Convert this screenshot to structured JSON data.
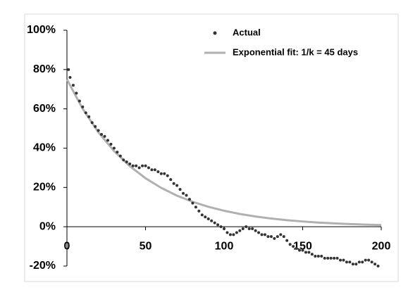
{
  "chart_data": {
    "type": "scatter",
    "xlim": [
      0,
      200
    ],
    "xticks": [
      0,
      50,
      100,
      150,
      200
    ],
    "ylim": [
      -20,
      100
    ],
    "yticks": [
      {
        "value": -20,
        "label": "-20%"
      },
      {
        "value": 0,
        "label": "0%"
      },
      {
        "value": 20,
        "label": "20%"
      },
      {
        "value": 40,
        "label": "40%"
      },
      {
        "value": 60,
        "label": "60%"
      },
      {
        "value": 80,
        "label": "80%"
      },
      {
        "value": 100,
        "label": "100%"
      }
    ],
    "legend": "top-right",
    "series": [
      {
        "name": "Actual",
        "color": "#333333",
        "kind": "points",
        "x": [
          1,
          2,
          4,
          6,
          8,
          10,
          12,
          14,
          16,
          18,
          20,
          22,
          24,
          26,
          28,
          30,
          32,
          34,
          36,
          38,
          40,
          42,
          44,
          46,
          48,
          50,
          52,
          54,
          56,
          58,
          60,
          62,
          64,
          66,
          68,
          70,
          72,
          74,
          76,
          78,
          80,
          82,
          84,
          86,
          88,
          90,
          92,
          94,
          96,
          98,
          100,
          102,
          104,
          106,
          108,
          110,
          112,
          114,
          116,
          118,
          120,
          122,
          124,
          126,
          128,
          130,
          132,
          134,
          136,
          138,
          140,
          142,
          144,
          146,
          148,
          150,
          152,
          154,
          156,
          158,
          160,
          162,
          164,
          166,
          168,
          170,
          172,
          174,
          176,
          178,
          180,
          182,
          184,
          186,
          188,
          190,
          192,
          194,
          196,
          198
        ],
        "values": [
          80,
          76,
          72,
          68,
          64,
          61,
          58,
          56,
          53,
          51,
          49,
          47,
          46,
          44,
          42,
          40,
          38,
          36,
          34,
          33,
          32,
          31,
          31,
          30,
          31,
          31,
          30,
          29,
          29,
          28,
          27,
          27,
          26,
          24,
          22,
          21,
          19,
          17,
          16,
          14,
          12,
          10,
          8,
          6,
          5,
          4,
          3,
          2,
          1,
          0,
          -1,
          -3,
          -4,
          -4,
          -3,
          -2,
          -1,
          0,
          -1,
          -1,
          -2,
          -3,
          -4,
          -4,
          -5,
          -5,
          -6,
          -5,
          -4,
          -5,
          -7,
          -9,
          -10,
          -11,
          -12,
          -12,
          -13,
          -13,
          -14,
          -15,
          -15,
          -15,
          -16,
          -16,
          -16,
          -16,
          -16,
          -17,
          -17,
          -18,
          -18,
          -19,
          -19,
          -18,
          -18,
          -17,
          -17,
          -18,
          -19,
          -20
        ]
      },
      {
        "name": "Exponential fit: 1/k = 45 days",
        "color": "#b0b0b0",
        "kind": "line",
        "x": [
          0,
          10,
          20,
          30,
          40,
          50,
          60,
          70,
          80,
          90,
          100,
          110,
          120,
          130,
          140,
          150,
          160,
          170,
          180,
          190,
          200
        ],
        "values": [
          75,
          60.05,
          48.09,
          38.51,
          30.83,
          24.69,
          19.77,
          15.83,
          12.68,
          10.15,
          8.13,
          6.51,
          5.21,
          4.17,
          3.34,
          2.68,
          2.14,
          1.72,
          1.37,
          1.1,
          0.88
        ]
      }
    ]
  }
}
